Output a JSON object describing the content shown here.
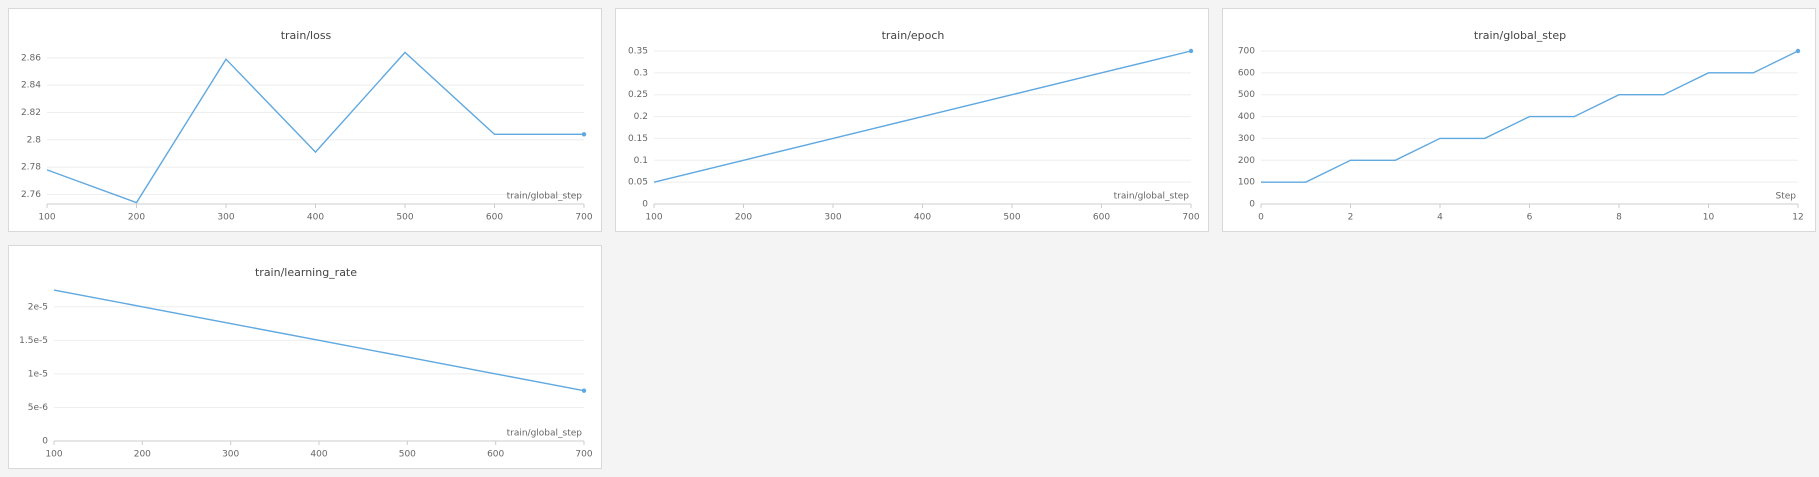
{
  "chart_data": [
    {
      "type": "line",
      "title": "train/loss",
      "x_label": "train/global_step",
      "x": [
        100,
        200,
        300,
        400,
        500,
        600,
        700
      ],
      "values": [
        2.778,
        2.754,
        2.859,
        2.791,
        2.864,
        2.804,
        2.804
      ],
      "color": "#5fa8e0",
      "xlim": [
        100,
        700
      ],
      "xticks": [
        100,
        200,
        300,
        400,
        500,
        600,
        700
      ],
      "ylim": [
        2.753,
        2.865
      ],
      "yticks": [
        2.76,
        2.78,
        2.8,
        2.82,
        2.84,
        2.86
      ],
      "grid": true
    },
    {
      "type": "line",
      "title": "train/epoch",
      "x_label": "train/global_step",
      "x": [
        100,
        200,
        300,
        400,
        500,
        600,
        700
      ],
      "values": [
        0.05,
        0.1,
        0.15,
        0.2,
        0.25,
        0.3,
        0.35
      ],
      "color": "#5fa8e0",
      "xlim": [
        100,
        700
      ],
      "xticks": [
        100,
        200,
        300,
        400,
        500,
        600,
        700
      ],
      "ylim": [
        0,
        0.35
      ],
      "yticks": [
        0,
        0.05,
        0.1,
        0.15,
        0.2,
        0.25,
        0.3,
        0.35
      ],
      "grid": true
    },
    {
      "type": "line",
      "title": "train/global_step",
      "x_label": "Step",
      "x": [
        0,
        1,
        2,
        3,
        4,
        5,
        6,
        7,
        8,
        9,
        10,
        11,
        12
      ],
      "values": [
        100,
        100,
        200,
        200,
        300,
        300,
        400,
        400,
        500,
        500,
        600,
        600,
        700
      ],
      "color": "#5fa8e0",
      "xlim": [
        0,
        12
      ],
      "xticks": [
        0,
        2,
        4,
        6,
        8,
        10,
        12
      ],
      "ylim": [
        0,
        700
      ],
      "yticks": [
        0,
        100,
        200,
        300,
        400,
        500,
        600,
        700
      ],
      "grid": true
    },
    {
      "type": "line",
      "title": "train/learning_rate",
      "x_label": "train/global_step",
      "x": [
        100,
        200,
        300,
        400,
        500,
        600,
        700
      ],
      "values": [
        2.25e-05,
        2e-05,
        1.75e-05,
        1.5e-05,
        1.25e-05,
        1e-05,
        7.5e-06
      ],
      "color": "#5fa8e0",
      "xlim": [
        100,
        700
      ],
      "xticks": [
        100,
        200,
        300,
        400,
        500,
        600,
        700
      ],
      "ylim": [
        0,
        2.28e-05
      ],
      "yticks": [
        0,
        {
          "value": 5e-06,
          "label": "5e-6"
        },
        {
          "value": 1e-05,
          "label": "1e-5"
        },
        {
          "value": 1.5e-05,
          "label": "1.5e-5"
        },
        {
          "value": 2e-05,
          "label": "2e-5"
        }
      ],
      "grid": true
    }
  ]
}
